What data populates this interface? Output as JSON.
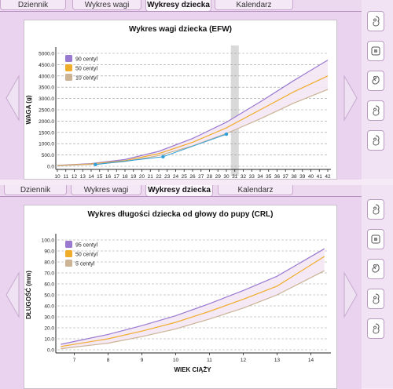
{
  "tabs": [
    "Dziennik",
    "Wykres wagi",
    "Wykresy dziecka",
    "Kalendarz"
  ],
  "colors": {
    "p90": "#9a7ad0",
    "p50": "#f0ad2c",
    "p10": "#cbb394",
    "band": "#f4e7f4",
    "actual": "#2f9fd8",
    "today": "#d9d9d9"
  },
  "sidebar_icons": [
    "fetus-icon",
    "square-icon",
    "fetus-curled-icon",
    "fetus-icon",
    "fetus-icon"
  ],
  "chart_data": [
    {
      "type": "line",
      "title": "Wykres wagi dziecka (EFW)",
      "ylabel": "WAGA (g)",
      "xlabel": "",
      "xlim": [
        10,
        42
      ],
      "ylim": [
        0,
        5000
      ],
      "yticks": [
        "0.0",
        "500.0",
        "1000.0",
        "1500.0",
        "2000.0",
        "2500.0",
        "3000.0",
        "3500.0",
        "4000.0",
        "4500.0",
        "5000.0"
      ],
      "xticks": [
        "10",
        "11",
        "12",
        "13",
        "14",
        "15",
        "16",
        "17",
        "18",
        "19",
        "20",
        "21",
        "22",
        "23",
        "24",
        "25",
        "26",
        "27",
        "28",
        "29",
        "30",
        "31",
        "32",
        "33",
        "34",
        "35",
        "36",
        "37",
        "38",
        "39",
        "40",
        "41",
        "42"
      ],
      "highlight_x": 31,
      "legend": [
        "90 centyl",
        "50 centyl",
        "10 centyl"
      ],
      "series": [
        {
          "name": "90 centyl",
          "x": [
            10,
            14,
            18,
            22,
            26,
            30,
            34,
            38,
            42
          ],
          "values": [
            40,
            120,
            300,
            660,
            1230,
            1950,
            2850,
            3800,
            4700
          ]
        },
        {
          "name": "50 centyl",
          "x": [
            10,
            14,
            18,
            22,
            26,
            30,
            34,
            38,
            42
          ],
          "values": [
            30,
            100,
            250,
            560,
            1060,
            1700,
            2500,
            3300,
            4000
          ]
        },
        {
          "name": "10 centyl",
          "x": [
            10,
            14,
            18,
            22,
            26,
            30,
            34,
            38,
            42
          ],
          "values": [
            20,
            80,
            210,
            470,
            900,
            1450,
            2100,
            2800,
            3400
          ]
        }
      ],
      "actual": {
        "x": [
          14.5,
          22.5,
          30
        ],
        "values": [
          75,
          420,
          1420
        ]
      }
    },
    {
      "type": "line",
      "title": "Wykres długości dziecka od głowy do pupy (CRL)",
      "ylabel": "DŁUGOŚĆ (mm)",
      "xlabel": "WIEK CIĄŻY",
      "xlim": [
        6.5,
        14.5
      ],
      "ylim": [
        0,
        100
      ],
      "yticks": [
        "0.0",
        "10.0",
        "20.0",
        "30.0",
        "40.0",
        "50.0",
        "60.0",
        "70.0",
        "80.0",
        "90.0",
        "100.0"
      ],
      "xticks": [
        "7",
        "8",
        "9",
        "10",
        "11",
        "12",
        "13",
        "14"
      ],
      "legend": [
        "95 centyl",
        "50 centyl",
        "5 centyl"
      ],
      "series": [
        {
          "name": "95 centyl",
          "x": [
            6.6,
            8,
            9,
            10,
            11,
            12,
            13,
            14.4
          ],
          "values": [
            5,
            14,
            22,
            31,
            42,
            54,
            67,
            92
          ]
        },
        {
          "name": "50 centyl",
          "x": [
            6.6,
            8,
            9,
            10,
            11,
            12,
            13,
            14.4
          ],
          "values": [
            3,
            10,
            17,
            25,
            35,
            46,
            58,
            85
          ]
        },
        {
          "name": "5 centyl",
          "x": [
            6.6,
            8,
            9,
            10,
            11,
            12,
            13,
            14.4
          ],
          "values": [
            1,
            6,
            12,
            19,
            28,
            38,
            50,
            72
          ]
        }
      ]
    }
  ]
}
